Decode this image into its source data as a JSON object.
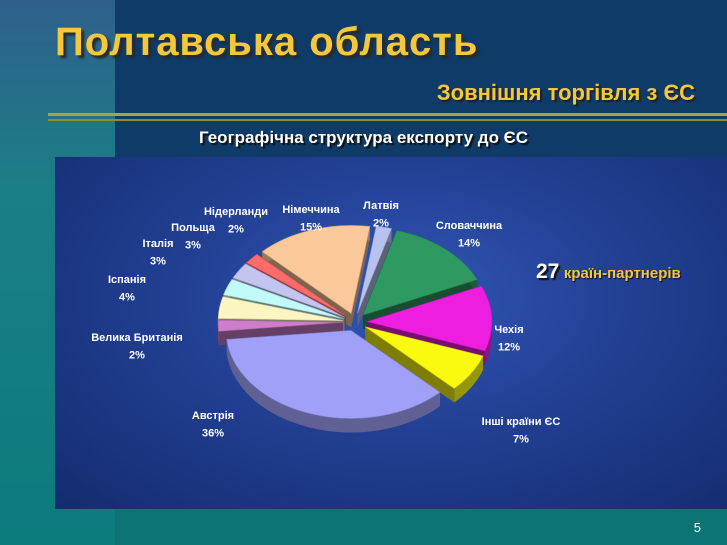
{
  "slide": {
    "title": "Полтавська область",
    "subtitle": "Зовнішня торгівля з ЄС",
    "heading": "Географічна структура експорту до ЄС",
    "partners_count": "27",
    "partners_text": "країн-партнерів",
    "page_number": "5"
  },
  "colors": {
    "background": "#0c7475",
    "title": "#f3c83c",
    "panel": "#223f93"
  },
  "chart_data": {
    "type": "pie",
    "style": "3d-exploded",
    "title": "Географічна структура експорту до ЄС",
    "slices": [
      {
        "name": "Латвія",
        "value": 2,
        "label": "2%",
        "color": "#b8c2ee"
      },
      {
        "name": "Словаччина",
        "value": 14,
        "label": "14%",
        "color": "#2e9960"
      },
      {
        "name": "Чехія",
        "value": 12,
        "label": "12%",
        "color": "#ee1ee0"
      },
      {
        "name": "Інші країни ЄС",
        "value": 7,
        "label": "7%",
        "color": "#fafa10"
      },
      {
        "name": "Австрія",
        "value": 36,
        "label": "36%",
        "color": "#a0a0f8"
      },
      {
        "name": "Велика Британія",
        "value": 2,
        "label": "2%",
        "color": "#cc7ecc"
      },
      {
        "name": "Іспанія",
        "value": 4,
        "label": "4%",
        "color": "#fbf5c2"
      },
      {
        "name": "Італія",
        "value": 3,
        "label": "3%",
        "color": "#c2fafa"
      },
      {
        "name": "Польща",
        "value": 3,
        "label": "3%",
        "color": "#c4c4f0"
      },
      {
        "name": "Нідерланди",
        "value": 2,
        "label": "2%",
        "color": "#ff6a6a"
      },
      {
        "name": "Німеччина",
        "value": 15,
        "label": "15%",
        "color": "#fbc89a"
      }
    ]
  }
}
